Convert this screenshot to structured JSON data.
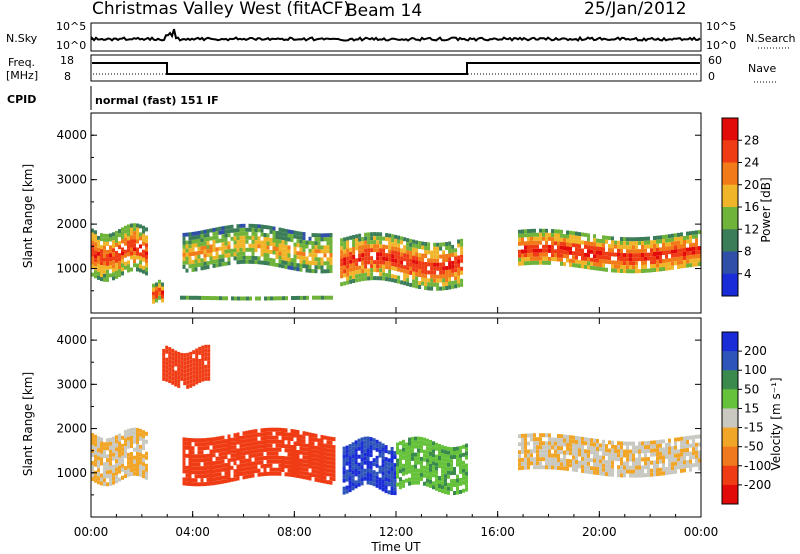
{
  "header": {
    "station": "Christmas Valley West (fitACF)",
    "beam": "Beam 14",
    "date": "25/Jan/2012"
  },
  "panels": {
    "nsky": {
      "label": "N.Sky",
      "ticks": [
        "10^5",
        "10^0"
      ],
      "right_label": "N.Search",
      "right_ticks": [
        "10^5",
        "10^0"
      ]
    },
    "freq": {
      "label_line1": "Freq.",
      "label_line2": "[MHz]",
      "ticks": [
        "18",
        "8"
      ],
      "right_label": "Nave",
      "right_ticks": [
        "60",
        "0"
      ]
    },
    "cpid": {
      "label": "CPID",
      "mode": "normal (fast) 151 IF"
    }
  },
  "chart_data": [
    {
      "type": "heatmap",
      "name": "power",
      "ylabel": "Slant Range [km]",
      "yticks": [
        "4000",
        "3000",
        "2000",
        "1000"
      ],
      "ylim": [
        0,
        4500
      ],
      "xlim": [
        0,
        24
      ],
      "colorbar": {
        "label": "Power [dB]",
        "ticks": [
          "28",
          "24",
          "20",
          "16",
          "12",
          "8",
          "4"
        ],
        "colors": [
          "#1a2bd8",
          "#2f4fa8",
          "#3a7d58",
          "#6fb33a",
          "#f1b52a",
          "#f27a18",
          "#f03c15",
          "#e30a0a"
        ]
      },
      "bands": [
        {
          "t": [
            0.0,
            2.2
          ],
          "r": [
            900,
            1900
          ],
          "level": 26
        },
        {
          "t": [
            2.4,
            2.8
          ],
          "r": [
            300,
            700
          ],
          "level": 28
        },
        {
          "t": [
            3.6,
            9.4
          ],
          "r": [
            1000,
            1900
          ],
          "level": 18
        },
        {
          "t": [
            9.8,
            14.6
          ],
          "r": [
            700,
            1700
          ],
          "level": 27
        },
        {
          "t": [
            16.8,
            24.0
          ],
          "r": [
            1000,
            1800
          ],
          "level": 27
        },
        {
          "t": [
            3.5,
            9.5
          ],
          "r": [
            300,
            380
          ],
          "level": 28
        }
      ]
    },
    {
      "type": "heatmap",
      "name": "velocity",
      "ylabel": "Slant Range [km]",
      "yticks": [
        "4000",
        "3000",
        "2000",
        "1000"
      ],
      "ylim": [
        0,
        4500
      ],
      "xlim": [
        0,
        24
      ],
      "xlabel": "Time UT",
      "xticks": [
        "00:00",
        "04:00",
        "08:00",
        "12:00",
        "16:00",
        "20:00",
        "00:00"
      ],
      "colorbar": {
        "label": "Velocity [m s⁻¹]",
        "ticks": [
          "200",
          "100",
          "50",
          "15",
          "-15",
          "-50",
          "-100",
          "-200"
        ],
        "colors": [
          "#1a2bd8",
          "#2e55b9",
          "#3a8a4e",
          "#66c23a",
          "#c9c9c2",
          "#f2a628",
          "#f0781e",
          "#f03c15",
          "#e30a0a"
        ]
      },
      "bands": [
        {
          "t": [
            0.0,
            2.2
          ],
          "r": [
            900,
            1900
          ],
          "velocity": -15
        },
        {
          "t": [
            3.6,
            9.6
          ],
          "r": [
            900,
            1900
          ],
          "velocity": -150
        },
        {
          "t": [
            9.9,
            12.0
          ],
          "r": [
            700,
            1700
          ],
          "velocity": 200
        },
        {
          "t": [
            12.0,
            14.8
          ],
          "r": [
            700,
            1700
          ],
          "velocity": 40
        },
        {
          "t": [
            16.8,
            24.0
          ],
          "r": [
            1000,
            1800
          ],
          "velocity": -10
        },
        {
          "t": [
            2.8,
            4.6
          ],
          "r": [
            3000,
            3800
          ],
          "velocity": -180
        }
      ]
    }
  ]
}
